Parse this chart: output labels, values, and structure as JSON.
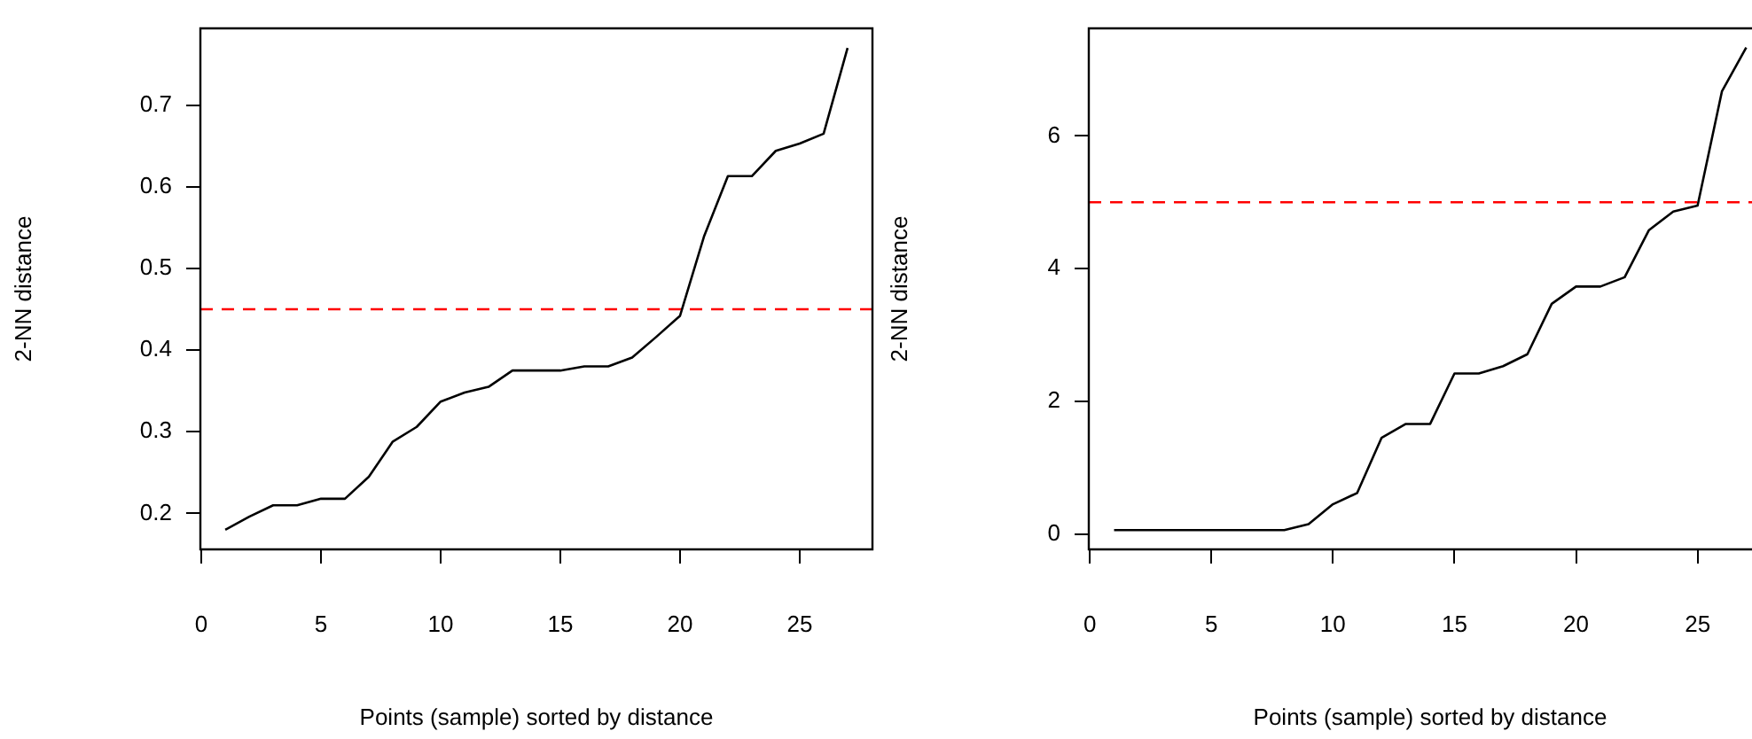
{
  "chart_data": [
    {
      "type": "line",
      "xlabel": "Points (sample) sorted by distance",
      "ylabel": "2-NN distance",
      "x": [
        1,
        2,
        3,
        4,
        5,
        6,
        7,
        8,
        9,
        10,
        11,
        12,
        13,
        14,
        15,
        16,
        17,
        18,
        19,
        20,
        21,
        22,
        23,
        24,
        25,
        26,
        27
      ],
      "values": [
        0.18,
        0.196,
        0.21,
        0.21,
        0.218,
        0.218,
        0.245,
        0.288,
        0.306,
        0.337,
        0.348,
        0.355,
        0.375,
        0.375,
        0.375,
        0.38,
        0.38,
        0.391,
        0.416,
        0.442,
        0.539,
        0.613,
        0.613,
        0.644,
        0.653,
        0.665,
        0.77
      ],
      "color": "#000000",
      "marker": "none",
      "line_style": "solid",
      "xlim": [
        -0.04,
        28.04
      ],
      "ylim": [
        0.156,
        0.794
      ],
      "xticks": [
        0,
        5,
        10,
        15,
        20,
        25
      ],
      "yticks": [
        0.2,
        0.3,
        0.4,
        0.5,
        0.6,
        0.7
      ],
      "ref_lines": [
        {
          "axis": "y",
          "value": 0.45,
          "color": "#ff0000",
          "line_style": "dashed"
        }
      ]
    },
    {
      "type": "line",
      "xlabel": "Points (sample) sorted by distance",
      "ylabel": "2-NN distance",
      "x": [
        1,
        2,
        3,
        4,
        5,
        6,
        7,
        8,
        9,
        10,
        11,
        12,
        13,
        14,
        15,
        16,
        17,
        18,
        19,
        20,
        21,
        22,
        23,
        24,
        25,
        26,
        27
      ],
      "values": [
        0.06,
        0.06,
        0.06,
        0.06,
        0.06,
        0.06,
        0.06,
        0.06,
        0.15,
        0.45,
        0.62,
        1.45,
        1.66,
        1.66,
        2.42,
        2.42,
        2.53,
        2.71,
        3.47,
        3.73,
        3.73,
        3.87,
        4.58,
        4.86,
        4.95,
        6.67,
        7.33
      ],
      "color": "#000000",
      "marker": "none",
      "line_style": "solid",
      "xlim": [
        -0.04,
        28.04
      ],
      "ylim": [
        -0.23,
        7.62
      ],
      "xticks": [
        0,
        5,
        10,
        15,
        20,
        25
      ],
      "yticks": [
        0,
        2,
        4,
        6
      ],
      "ref_lines": [
        {
          "axis": "y",
          "value": 5,
          "color": "#ff0000",
          "line_style": "dashed"
        }
      ]
    }
  ]
}
